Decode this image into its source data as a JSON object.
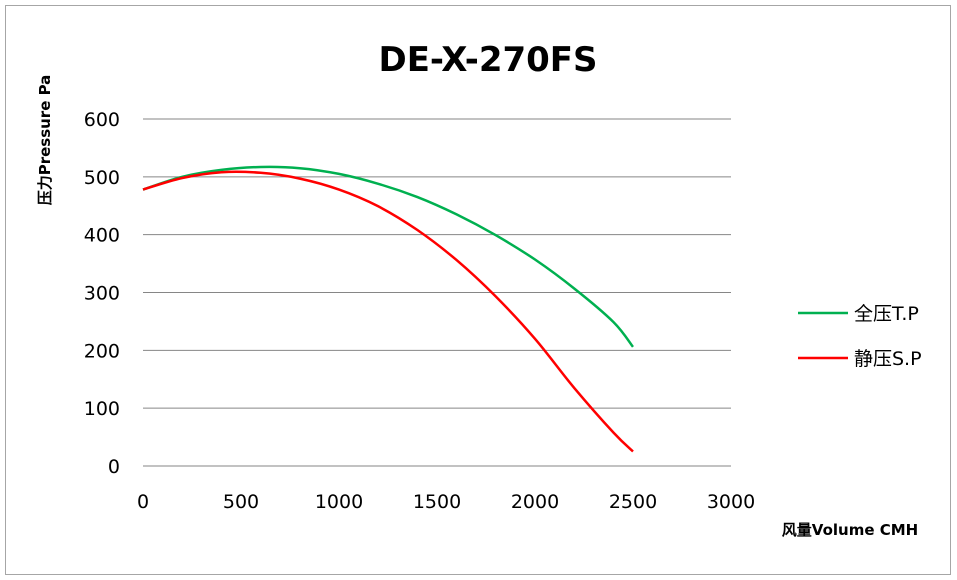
{
  "chart_data": {
    "type": "line",
    "title": "DE-X-270FS",
    "xlabel": "风量Volume CMH",
    "ylabel": "压力Pressure Pa",
    "xlim": [
      0,
      3000
    ],
    "ylim": [
      0,
      600
    ],
    "xticks": [
      0,
      500,
      1000,
      1500,
      2000,
      2500,
      3000
    ],
    "yticks": [
      0,
      100,
      200,
      300,
      400,
      500,
      600
    ],
    "grid": "horizontal",
    "legend_position": "right",
    "series": [
      {
        "name": "全压T.P",
        "color": "#00b050",
        "x": [
          0,
          200,
          400,
          600,
          800,
          1000,
          1200,
          1400,
          1600,
          1800,
          2000,
          2200,
          2400,
          2500
        ],
        "y": [
          478,
          500,
          512,
          517,
          515,
          505,
          488,
          465,
          435,
          399,
          357,
          307,
          249,
          206
        ]
      },
      {
        "name": "静压S.P",
        "color": "#ff0000",
        "x": [
          0,
          200,
          400,
          600,
          800,
          1000,
          1200,
          1400,
          1600,
          1800,
          2000,
          2200,
          2400,
          2500
        ],
        "y": [
          478,
          498,
          508,
          507,
          497,
          478,
          449,
          408,
          356,
          293,
          220,
          135,
          58,
          25
        ]
      }
    ]
  }
}
